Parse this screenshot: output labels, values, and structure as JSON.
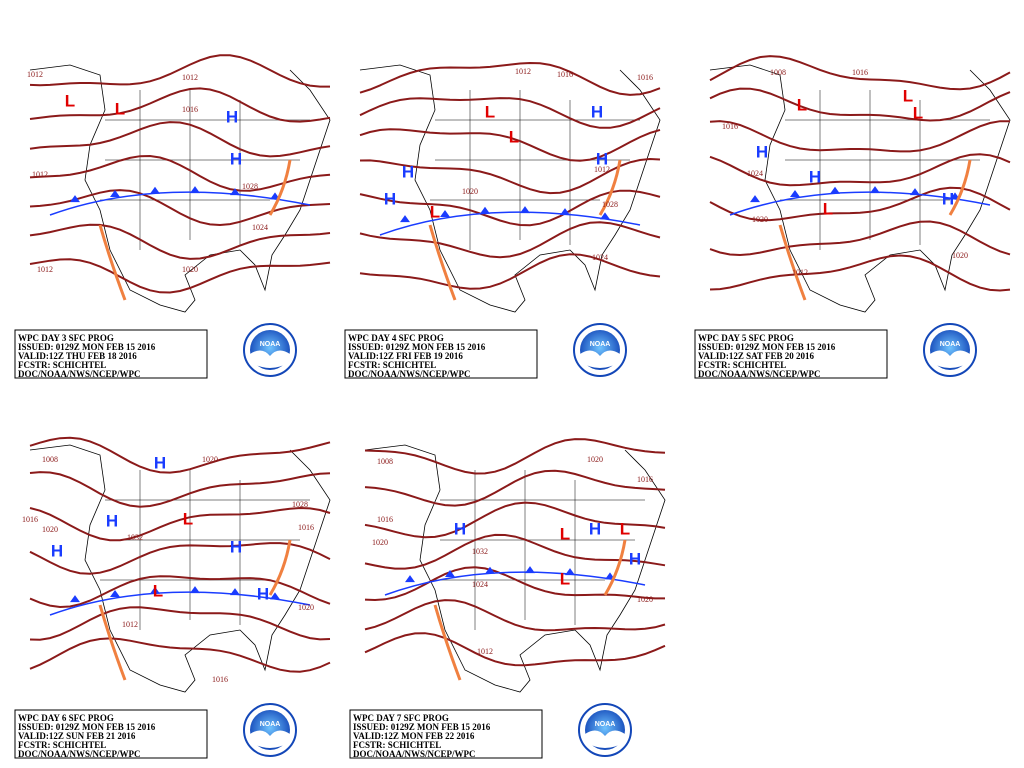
{
  "logo_text": "NOAA",
  "panels": [
    {
      "caption": [
        "WPC DAY 3 SFC PROG",
        "ISSUED: 0129Z MON FEB 15 2016",
        "VALID:12Z THU FEB 18 2016",
        "FCSTR: SCHICHTEL",
        "DOC/NOAA/NWS/NCEP/WPC"
      ],
      "labels": [
        "H",
        "H",
        "L",
        "L",
        "1012",
        "1012",
        "1012",
        "1012",
        "1016",
        "1020",
        "1024",
        "1028"
      ]
    },
    {
      "caption": [
        "WPC DAY 4 SFC PROG",
        "ISSUED: 0129Z MON FEB 15 2016",
        "VALID:12Z FRI FEB 19 2016",
        "FCSTR: SCHICHTEL",
        "DOC/NOAA/NWS/NCEP/WPC"
      ],
      "labels": [
        "H",
        "H",
        "H",
        "H",
        "L",
        "L",
        "L",
        "1012",
        "1012",
        "1016",
        "1016",
        "1020",
        "1024",
        "1028"
      ]
    },
    {
      "caption": [
        "WPC DAY 5 SFC PROG",
        "ISSUED: 0129Z MON FEB 15 2016",
        "VALID:12Z SAT FEB 20 2016",
        "FCSTR: SCHICHTEL",
        "DOC/NOAA/NWS/NCEP/WPC"
      ],
      "labels": [
        "H",
        "H",
        "H",
        "L",
        "L",
        "L",
        "L",
        "1008",
        "1012",
        "1016",
        "1016",
        "1020",
        "1020",
        "1024"
      ]
    },
    {
      "caption": [
        "WPC DAY 6 SFC PROG",
        "ISSUED: 0129Z MON FEB 15 2016",
        "VALID:12Z SUN FEB 21 2016",
        "FCSTR: SCHICHTEL",
        "DOC/NOAA/NWS/NCEP/WPC"
      ],
      "labels": [
        "H",
        "H",
        "H",
        "H",
        "H",
        "L",
        "L",
        "1008",
        "1012",
        "1016",
        "1016",
        "1016",
        "1020",
        "1020",
        "1020",
        "1028",
        "1032"
      ]
    },
    {
      "caption": [
        "WPC DAY 7 SFC PROG",
        "ISSUED: 0129Z MON FEB 15 2016",
        "VALID:12Z MON FEB 22 2016",
        "FCSTR: SCHICHTEL",
        "DOC/NOAA/NWS/NCEP/WPC"
      ],
      "labels": [
        "H",
        "H",
        "H",
        "L",
        "L",
        "L",
        "1008",
        "1012",
        "1016",
        "1016",
        "1020",
        "1020",
        "1020",
        "1024",
        "1032"
      ]
    }
  ]
}
